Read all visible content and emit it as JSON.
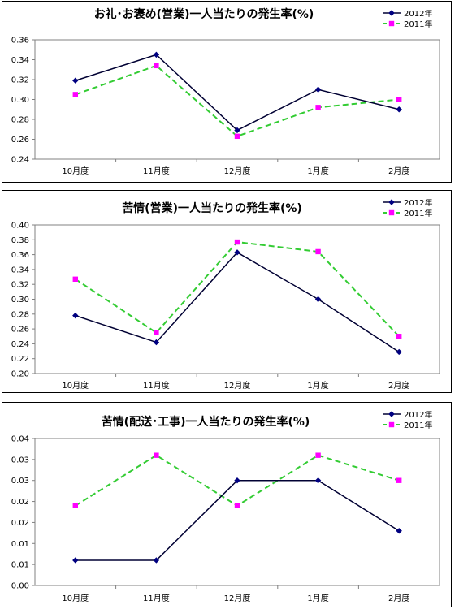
{
  "chart_data": [
    {
      "type": "line",
      "title": "お礼･お褒め(営業)一人当たりの発生率(%)",
      "categories": [
        "10月度",
        "11月度",
        "12月度",
        "1月度",
        "2月度"
      ],
      "series": [
        {
          "name": "2012年",
          "values": [
            0.319,
            0.345,
            0.269,
            0.31,
            0.29
          ],
          "color": "#000033",
          "marker_color": "#000080",
          "dash": "solid",
          "marker": "diamond"
        },
        {
          "name": "2011年",
          "values": [
            0.305,
            0.334,
            0.263,
            0.292,
            0.3
          ],
          "color": "#33cc33",
          "marker_color": "#ff00ff",
          "dash": "dashed",
          "marker": "square"
        }
      ],
      "yticks": [
        "0.24",
        "0.26",
        "0.28",
        "0.30",
        "0.32",
        "0.34",
        "0.36"
      ],
      "ylim": [
        0.24,
        0.36
      ],
      "grid": false,
      "legend": "top-right"
    },
    {
      "type": "line",
      "title": "苦情(営業)一人当たりの発生率(%)",
      "categories": [
        "10月度",
        "11月度",
        "12月度",
        "1月度",
        "2月度"
      ],
      "series": [
        {
          "name": "2012年",
          "values": [
            0.278,
            0.242,
            0.363,
            0.3,
            0.229
          ],
          "color": "#000033",
          "marker_color": "#000080",
          "dash": "solid",
          "marker": "diamond"
        },
        {
          "name": "2011年",
          "values": [
            0.327,
            0.255,
            0.377,
            0.364,
            0.25
          ],
          "color": "#33cc33",
          "marker_color": "#ff00ff",
          "dash": "dashed",
          "marker": "square"
        }
      ],
      "yticks": [
        "0.20",
        "0.22",
        "0.24",
        "0.26",
        "0.28",
        "0.30",
        "0.32",
        "0.34",
        "0.36",
        "0.38",
        "0.40"
      ],
      "ylim": [
        0.2,
        0.4
      ],
      "grid": false,
      "legend": "top-right"
    },
    {
      "type": "line",
      "title": "苦情(配送･工事)一人当たりの発生率(%)",
      "categories": [
        "10月度",
        "11月度",
        "12月度",
        "1月度",
        "2月度"
      ],
      "series": [
        {
          "name": "2012年",
          "values": [
            0.006,
            0.006,
            0.025,
            0.025,
            0.013
          ],
          "color": "#000033",
          "marker_color": "#000080",
          "dash": "solid",
          "marker": "diamond"
        },
        {
          "name": "2011年",
          "values": [
            0.019,
            0.031,
            0.019,
            0.031,
            0.025
          ],
          "color": "#33cc33",
          "marker_color": "#ff00ff",
          "dash": "dashed",
          "marker": "square"
        }
      ],
      "yticks": [
        "0.00",
        "0.01",
        "0.01",
        "0.02",
        "0.02",
        "0.03",
        "0.03",
        "0.04"
      ],
      "ylim": [
        0.0,
        0.035
      ],
      "grid": false,
      "legend": "top-right"
    }
  ]
}
